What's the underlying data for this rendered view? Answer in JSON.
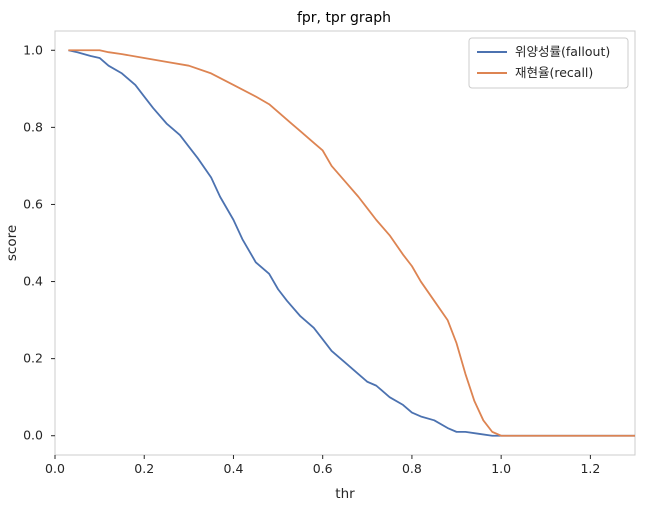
{
  "chart_data": {
    "type": "line",
    "title": "fpr, tpr graph",
    "xlabel": "thr",
    "ylabel": "score",
    "xlim": [
      0.0,
      1.3
    ],
    "ylim": [
      -0.05,
      1.05
    ],
    "xticks": [
      "0.0",
      "0.2",
      "0.4",
      "0.6",
      "0.8",
      "1.0",
      "1.2"
    ],
    "yticks": [
      "0.0",
      "0.2",
      "0.4",
      "0.6",
      "0.8",
      "1.0"
    ],
    "grid": false,
    "legend_position": "top-right",
    "series": [
      {
        "name": "위양성률(fallout)",
        "color": "#4c72b0",
        "x": [
          0.03,
          0.05,
          0.08,
          0.1,
          0.12,
          0.15,
          0.18,
          0.2,
          0.22,
          0.25,
          0.28,
          0.3,
          0.32,
          0.35,
          0.37,
          0.4,
          0.42,
          0.45,
          0.48,
          0.5,
          0.52,
          0.55,
          0.58,
          0.6,
          0.62,
          0.65,
          0.68,
          0.7,
          0.72,
          0.75,
          0.78,
          0.8,
          0.82,
          0.85,
          0.88,
          0.9,
          0.92,
          0.95,
          0.98,
          1.0,
          1.1,
          1.2,
          1.3
        ],
        "y": [
          1.0,
          0.995,
          0.985,
          0.98,
          0.96,
          0.94,
          0.91,
          0.88,
          0.85,
          0.81,
          0.78,
          0.75,
          0.72,
          0.67,
          0.62,
          0.56,
          0.51,
          0.45,
          0.42,
          0.38,
          0.35,
          0.31,
          0.28,
          0.25,
          0.22,
          0.19,
          0.16,
          0.14,
          0.13,
          0.1,
          0.08,
          0.06,
          0.05,
          0.04,
          0.02,
          0.01,
          0.01,
          0.005,
          0.0,
          0.0,
          0.0,
          0.0,
          0.0
        ]
      },
      {
        "name": "재현율(recall)",
        "color": "#dd8452",
        "x": [
          0.03,
          0.05,
          0.1,
          0.12,
          0.15,
          0.2,
          0.25,
          0.3,
          0.35,
          0.4,
          0.45,
          0.48,
          0.5,
          0.53,
          0.55,
          0.58,
          0.6,
          0.62,
          0.65,
          0.68,
          0.7,
          0.72,
          0.75,
          0.78,
          0.8,
          0.82,
          0.85,
          0.88,
          0.9,
          0.92,
          0.94,
          0.96,
          0.98,
          1.0,
          1.1,
          1.2,
          1.3
        ],
        "y": [
          1.0,
          1.0,
          1.0,
          0.995,
          0.99,
          0.98,
          0.97,
          0.96,
          0.94,
          0.91,
          0.88,
          0.86,
          0.84,
          0.81,
          0.79,
          0.76,
          0.74,
          0.7,
          0.66,
          0.62,
          0.59,
          0.56,
          0.52,
          0.47,
          0.44,
          0.4,
          0.35,
          0.3,
          0.24,
          0.16,
          0.09,
          0.04,
          0.01,
          0.0,
          0.0,
          0.0,
          0.0
        ]
      }
    ]
  }
}
